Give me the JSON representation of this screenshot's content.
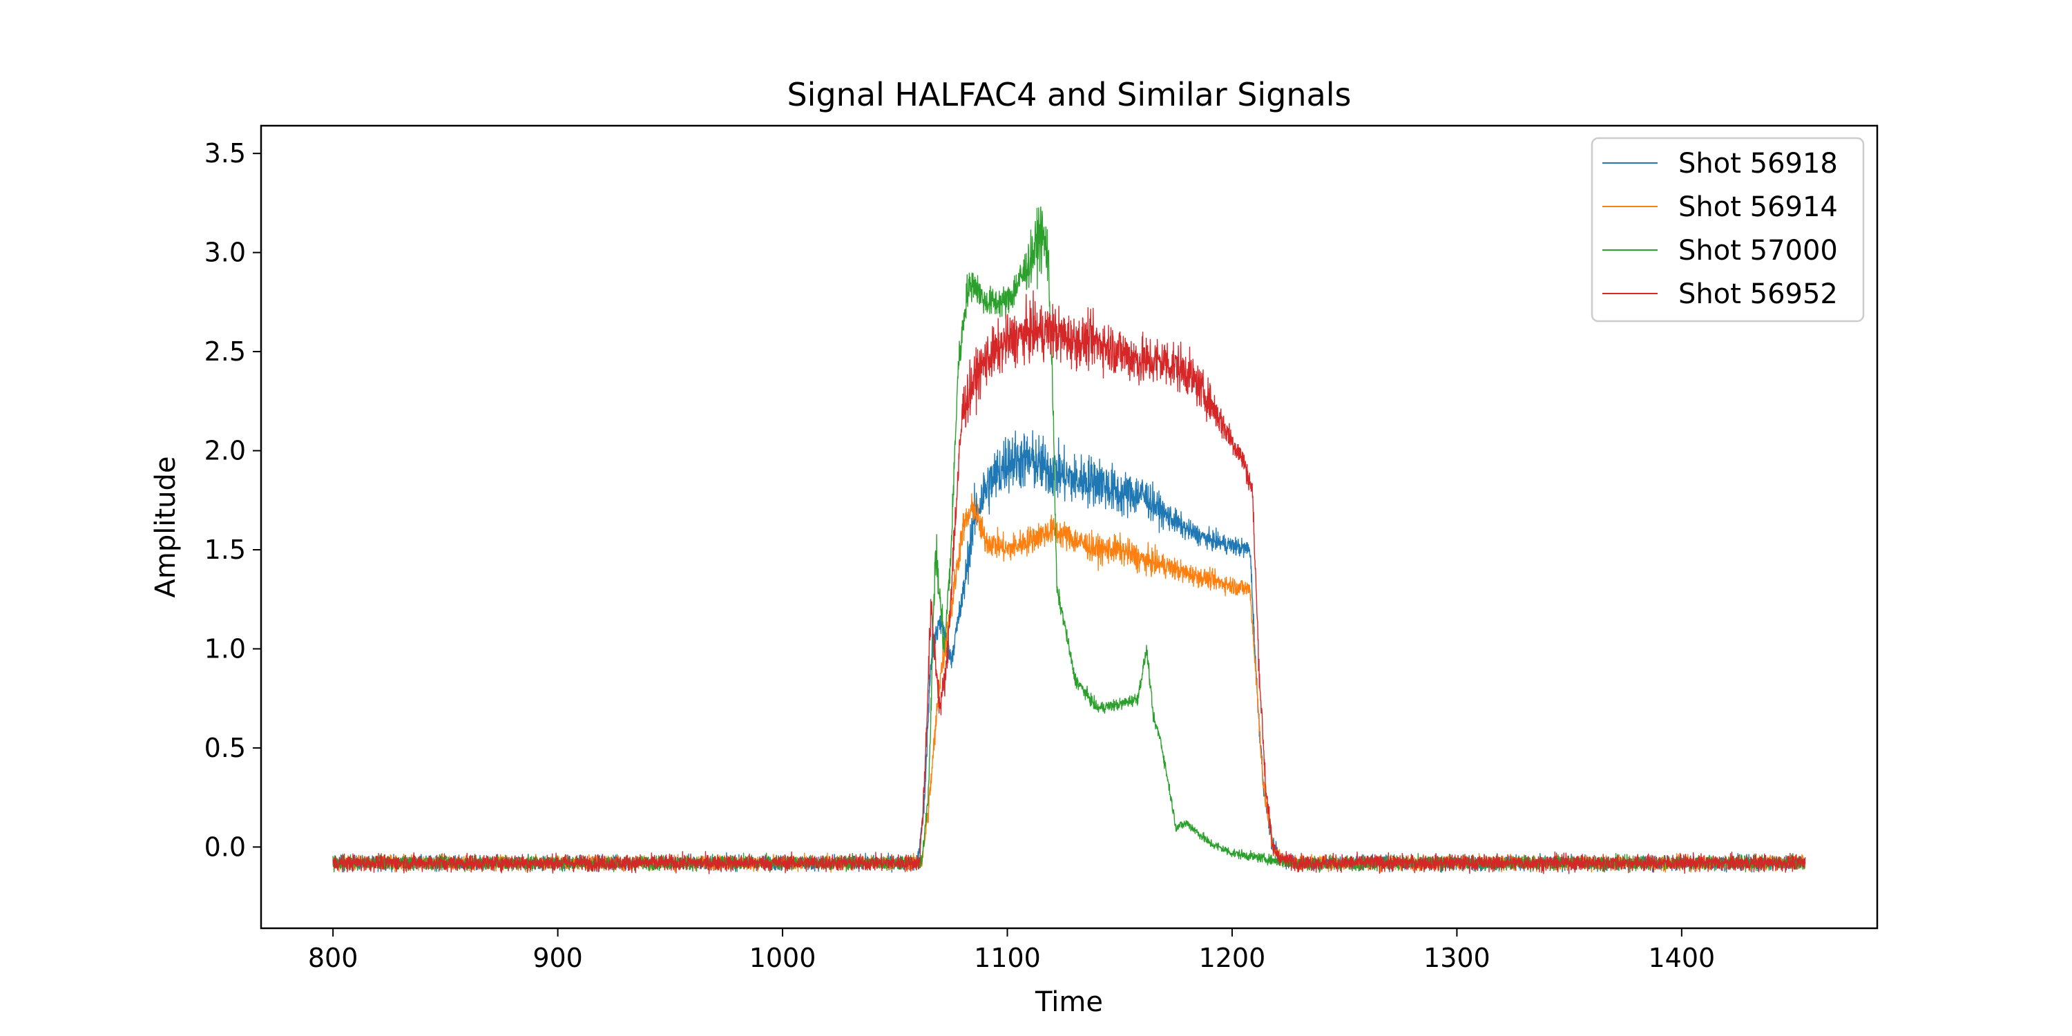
{
  "chart_data": {
    "type": "line",
    "title": "Signal HALFAC4 and Similar Signals",
    "xlabel": "Time",
    "ylabel": "Amplitude",
    "xlim": [
      768,
      1487
    ],
    "ylim": [
      -0.41,
      3.64
    ],
    "grid": false,
    "legend_position": "top-right",
    "x_ticks": [
      800,
      900,
      1000,
      1100,
      1200,
      1300,
      1400
    ],
    "y_ticks": [
      0.0,
      0.5,
      1.0,
      1.5,
      2.0,
      2.5,
      3.0,
      3.5
    ],
    "x_tick_labels": [
      "800",
      "900",
      "1000",
      "1100",
      "1200",
      "1300",
      "1400"
    ],
    "y_tick_labels": [
      "0.0",
      "0.5",
      "1.0",
      "1.5",
      "2.0",
      "2.5",
      "3.0",
      "3.5"
    ],
    "series": [
      {
        "name": "Shot 56918",
        "color": "#1f77b4",
        "x": [
          800,
          1060,
          1063,
          1066,
          1070,
          1075,
          1080,
          1085,
          1090,
          1100,
          1110,
          1120,
          1130,
          1140,
          1150,
          1160,
          1170,
          1180,
          1190,
          1200,
          1208,
          1211,
          1214,
          1218,
          1222,
          1230,
          1455
        ],
        "y": [
          -0.08,
          -0.08,
          0.2,
          0.95,
          1.15,
          0.95,
          1.25,
          1.65,
          1.8,
          1.95,
          1.95,
          1.9,
          1.85,
          1.85,
          1.78,
          1.78,
          1.68,
          1.6,
          1.55,
          1.52,
          1.5,
          0.8,
          0.3,
          0.0,
          -0.06,
          -0.08,
          -0.08
        ],
        "noise": [
          0.06,
          0.06,
          0.1,
          0.15,
          0.12,
          0.1,
          0.14,
          0.22,
          0.24,
          0.26,
          0.25,
          0.24,
          0.22,
          0.22,
          0.2,
          0.18,
          0.12,
          0.09,
          0.08,
          0.08,
          0.08,
          0.1,
          0.08,
          0.07,
          0.06,
          0.06,
          0.06
        ]
      },
      {
        "name": "Shot 56914",
        "color": "#ff7f0e",
        "x": [
          800,
          1062,
          1065,
          1070,
          1075,
          1080,
          1085,
          1090,
          1100,
          1110,
          1120,
          1130,
          1140,
          1150,
          1160,
          1170,
          1180,
          1190,
          1200,
          1208,
          1211,
          1214,
          1218,
          1222,
          1230,
          1455
        ],
        "y": [
          -0.08,
          -0.08,
          0.2,
          0.85,
          1.2,
          1.6,
          1.72,
          1.55,
          1.5,
          1.55,
          1.6,
          1.55,
          1.5,
          1.5,
          1.45,
          1.42,
          1.38,
          1.35,
          1.32,
          1.3,
          0.8,
          0.3,
          0.0,
          -0.06,
          -0.08,
          -0.08
        ],
        "noise": [
          0.06,
          0.06,
          0.1,
          0.14,
          0.14,
          0.14,
          0.13,
          0.12,
          0.12,
          0.12,
          0.12,
          0.12,
          0.12,
          0.12,
          0.12,
          0.1,
          0.09,
          0.08,
          0.08,
          0.08,
          0.1,
          0.08,
          0.07,
          0.06,
          0.06,
          0.06
        ]
      },
      {
        "name": "Shot 57000",
        "color": "#2ca02c",
        "x": [
          800,
          1062,
          1065,
          1068,
          1072,
          1075,
          1078,
          1082,
          1085,
          1090,
          1100,
          1110,
          1115,
          1118,
          1120,
          1122,
          1125,
          1130,
          1140,
          1150,
          1158,
          1162,
          1165,
          1168,
          1172,
          1175,
          1180,
          1190,
          1200,
          1215,
          1225,
          1230,
          1455
        ],
        "y": [
          -0.08,
          -0.08,
          0.3,
          1.5,
          1.0,
          1.5,
          2.4,
          2.8,
          2.85,
          2.75,
          2.75,
          2.95,
          3.1,
          3.0,
          2.4,
          1.3,
          1.15,
          0.85,
          0.7,
          0.72,
          0.75,
          1.0,
          0.65,
          0.55,
          0.3,
          0.1,
          0.12,
          0.02,
          -0.03,
          -0.06,
          -0.08,
          -0.08,
          -0.08
        ],
        "noise": [
          0.06,
          0.06,
          0.1,
          0.2,
          0.15,
          0.15,
          0.15,
          0.15,
          0.14,
          0.12,
          0.14,
          0.2,
          0.3,
          0.25,
          0.15,
          0.08,
          0.06,
          0.06,
          0.05,
          0.05,
          0.05,
          0.06,
          0.05,
          0.05,
          0.05,
          0.04,
          0.04,
          0.04,
          0.04,
          0.04,
          0.05,
          0.06,
          0.06
        ]
      },
      {
        "name": "Shot 56952",
        "color": "#d62728",
        "x": [
          800,
          1061,
          1063,
          1066,
          1068,
          1070,
          1073,
          1076,
          1080,
          1085,
          1090,
          1100,
          1110,
          1120,
          1130,
          1140,
          1150,
          1160,
          1170,
          1180,
          1190,
          1200,
          1205,
          1209,
          1212,
          1215,
          1218,
          1222,
          1230,
          1455
        ],
        "y": [
          -0.08,
          -0.08,
          0.3,
          1.2,
          0.95,
          0.7,
          0.9,
          1.5,
          2.2,
          2.35,
          2.45,
          2.55,
          2.6,
          2.6,
          2.55,
          2.55,
          2.5,
          2.45,
          2.45,
          2.4,
          2.25,
          2.05,
          1.95,
          1.8,
          0.9,
          0.3,
          0.0,
          -0.06,
          -0.08,
          -0.08
        ],
        "noise": [
          0.07,
          0.07,
          0.12,
          0.18,
          0.14,
          0.12,
          0.14,
          0.18,
          0.22,
          0.22,
          0.22,
          0.22,
          0.24,
          0.24,
          0.22,
          0.22,
          0.22,
          0.22,
          0.22,
          0.2,
          0.16,
          0.12,
          0.1,
          0.1,
          0.12,
          0.1,
          0.07,
          0.07,
          0.07,
          0.07
        ]
      }
    ]
  }
}
